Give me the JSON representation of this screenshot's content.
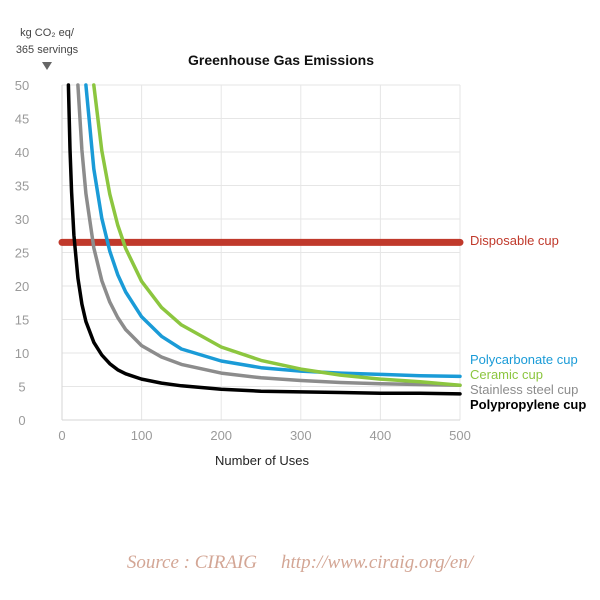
{
  "chart_data": {
    "type": "line",
    "title": "Greenhouse Gas Emissions",
    "xlabel": "Number of Uses",
    "ylabel_line1": "kg CO₂ eq/",
    "ylabel_line2": "365 servings",
    "xlim": [
      0,
      500
    ],
    "ylim": [
      0,
      50
    ],
    "x_ticks": [
      0,
      100,
      200,
      300,
      400,
      500
    ],
    "y_ticks": [
      0,
      5,
      10,
      15,
      20,
      25,
      30,
      35,
      40,
      45,
      50
    ],
    "grid": true,
    "series": [
      {
        "name": "Disposable cup",
        "color": "#c0392b",
        "x": [
          0,
          500
        ],
        "y": [
          26.5,
          26.5
        ]
      },
      {
        "name": "Polycarbonate cup",
        "color": "#1a9bd7",
        "x": [
          30,
          40,
          50,
          60,
          70,
          80,
          100,
          125,
          150,
          200,
          250,
          300,
          350,
          400,
          450,
          500
        ],
        "y": [
          50,
          37.5,
          30.1,
          25.2,
          21.7,
          19.1,
          15.4,
          12.5,
          10.6,
          8.8,
          7.8,
          7.3,
          7.0,
          6.8,
          6.6,
          6.5
        ]
      },
      {
        "name": "Ceramic cup",
        "color": "#8cc63f",
        "x": [
          40,
          50,
          60,
          70,
          80,
          100,
          125,
          150,
          200,
          250,
          300,
          350,
          400,
          450,
          500
        ],
        "y": [
          50,
          40.2,
          33.7,
          29.1,
          25.6,
          20.7,
          16.8,
          14.2,
          10.9,
          8.9,
          7.6,
          6.7,
          6.1,
          5.7,
          5.2
        ]
      },
      {
        "name": "Stainless steel cup",
        "color": "#8c8c8c",
        "x": [
          20,
          25,
          30,
          40,
          50,
          60,
          70,
          80,
          100,
          125,
          150,
          200,
          250,
          300,
          350,
          400,
          450,
          500
        ],
        "y": [
          50,
          40.3,
          33.8,
          25.7,
          20.8,
          17.6,
          15.3,
          13.5,
          11.1,
          9.4,
          8.3,
          7.0,
          6.3,
          5.9,
          5.6,
          5.4,
          5.3,
          5.2
        ]
      },
      {
        "name": "Polypropylene cup",
        "color": "#000000",
        "x": [
          8,
          10,
          12,
          15,
          20,
          25,
          30,
          40,
          50,
          60,
          70,
          80,
          100,
          125,
          150,
          200,
          250,
          300,
          350,
          400,
          450,
          500
        ],
        "y": [
          50,
          40.4,
          34.0,
          27.6,
          21.2,
          17.3,
          14.7,
          11.6,
          9.7,
          8.4,
          7.5,
          6.9,
          6.1,
          5.5,
          5.1,
          4.6,
          4.3,
          4.2,
          4.1,
          4.0,
          4.0,
          3.9
        ]
      }
    ],
    "label_colors": {
      "Disposable cup": "#c0392b",
      "Polycarbonate cup": "#1a9bd7",
      "Ceramic cup": "#8cc63f",
      "Stainless steel cup": "#8c8c8c",
      "Polypropylene cup": "#000000"
    }
  },
  "source": {
    "label": "Source : CIRAIG",
    "url": "http://www.ciraig.org/en/"
  }
}
